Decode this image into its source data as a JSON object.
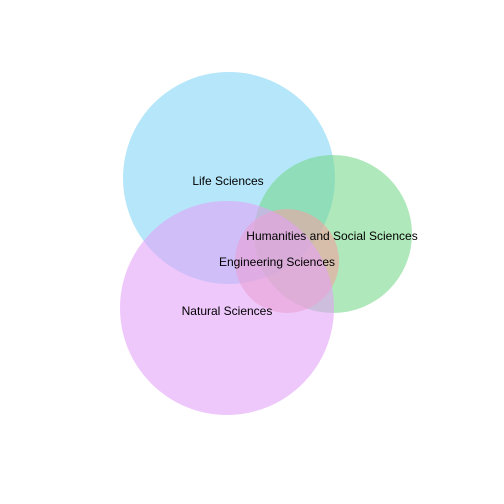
{
  "diagram": {
    "type": "venn",
    "sets": [
      {
        "name": "Life Sciences",
        "color": "#7fd4f5"
      },
      {
        "name": "Humanities and Social Sciences",
        "color": "#76d88a"
      },
      {
        "name": "Engineering Sciences",
        "color": "#f3a0a0"
      },
      {
        "name": "Natural Sciences",
        "color": "#e3a1f8"
      }
    ],
    "fill_opacity": 0.58
  }
}
